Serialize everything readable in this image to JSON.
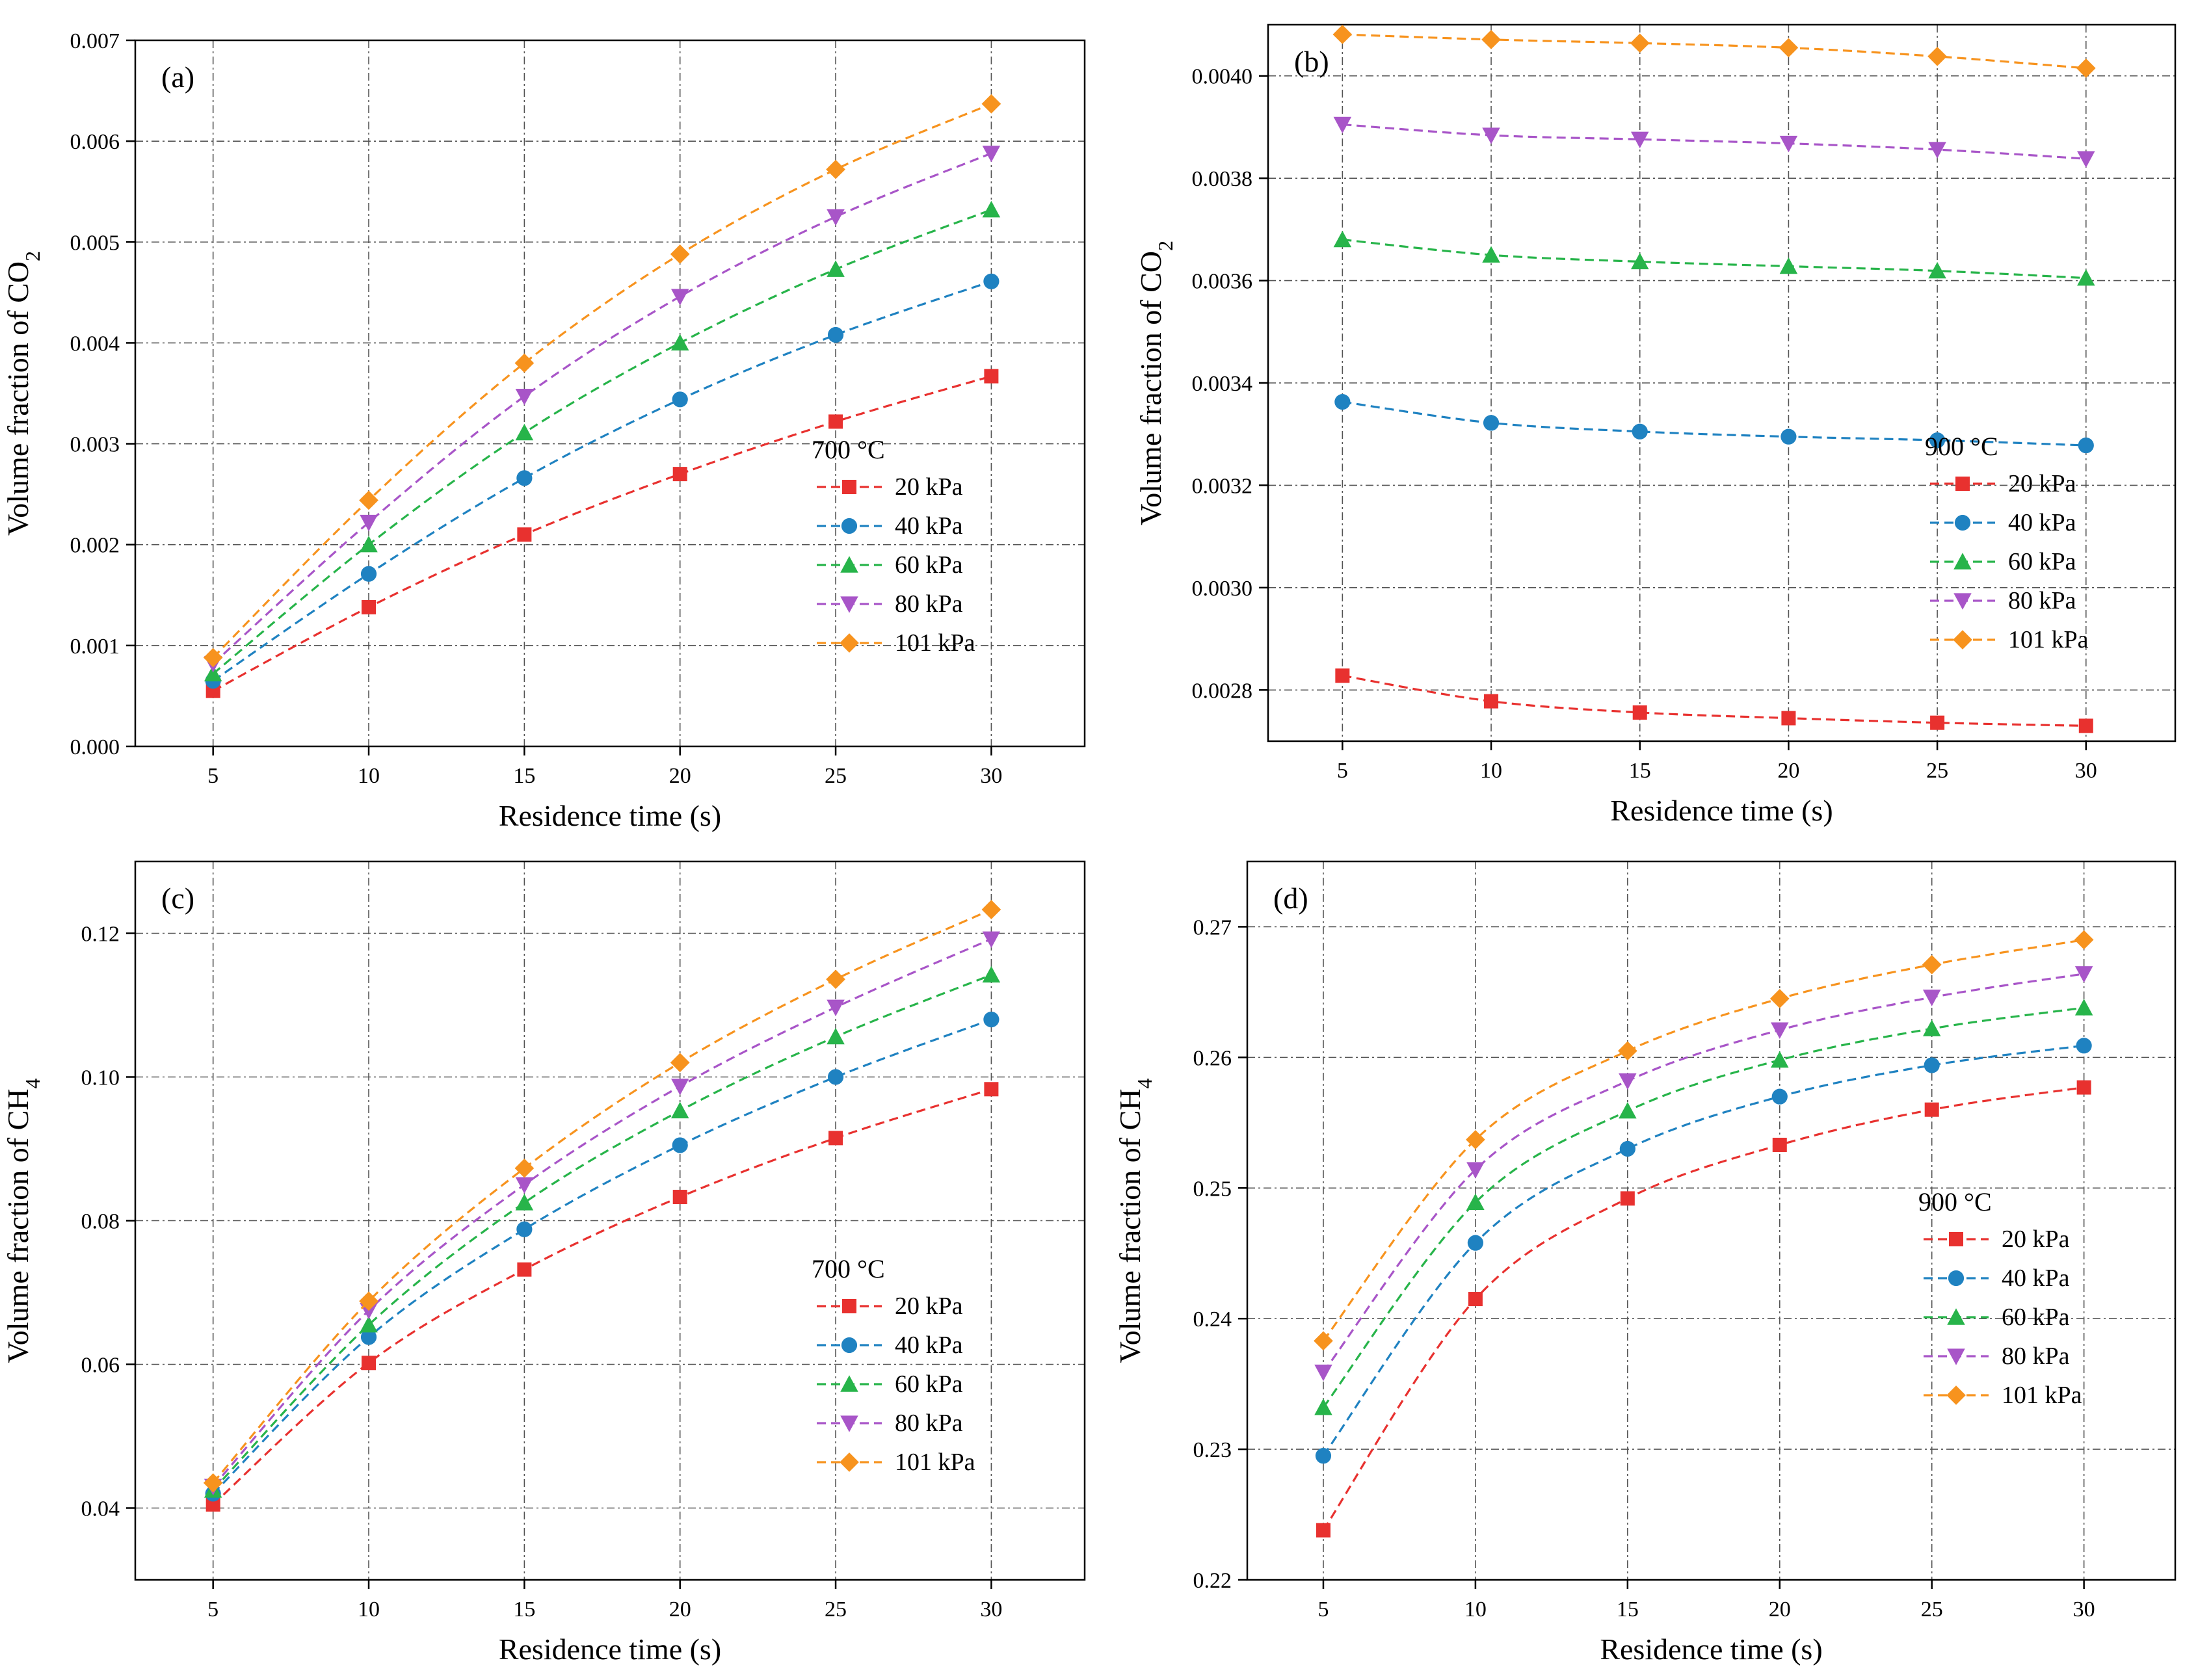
{
  "chart_data": [
    {
      "type": "line",
      "panel_label": "(a)",
      "xlabel": "Residence time (s)",
      "ylabel": {
        "main": "Volume fraction of CO",
        "sub": "2"
      },
      "xticks": [
        5,
        10,
        15,
        20,
        25,
        30
      ],
      "xlim": [
        2.5,
        33
      ],
      "ylim": [
        0,
        0.007
      ],
      "yticks": [
        "0.000",
        "0.001",
        "0.002",
        "0.003",
        "0.004",
        "0.005",
        "0.006",
        "0.007"
      ],
      "legend_title": "700 °C",
      "legend_position": "right-middle",
      "x": [
        5,
        10,
        15,
        20,
        25,
        30
      ],
      "series": [
        {
          "name": "20 kPa",
          "marker": "square",
          "color": "#e8312f",
          "values": [
            0.00055,
            0.00138,
            0.0021,
            0.0027,
            0.00322,
            0.00367
          ]
        },
        {
          "name": "40 kPa",
          "marker": "circle",
          "color": "#1f82c1",
          "values": [
            0.00065,
            0.00171,
            0.00266,
            0.00344,
            0.00408,
            0.00461
          ]
        },
        {
          "name": "60 kPa",
          "marker": "triangle-up",
          "color": "#27b44a",
          "values": [
            0.00072,
            0.002,
            0.00311,
            0.004,
            0.00473,
            0.00532
          ]
        },
        {
          "name": "80 kPa",
          "marker": "triangle-down",
          "color": "#a855c8",
          "values": [
            0.00082,
            0.00222,
            0.00347,
            0.00446,
            0.00525,
            0.00588
          ]
        },
        {
          "name": "101 kPa",
          "marker": "diamond",
          "color": "#f7931e",
          "values": [
            0.00088,
            0.00244,
            0.0038,
            0.00488,
            0.00572,
            0.00637
          ]
        }
      ]
    },
    {
      "type": "line",
      "panel_label": "(b)",
      "xlabel": "Residence time (s)",
      "ylabel": {
        "main": "Volume fraction of CO",
        "sub": "2"
      },
      "xticks": [
        5,
        10,
        15,
        20,
        25,
        30
      ],
      "xlim": [
        2.5,
        33
      ],
      "ylim": [
        0.0027,
        0.0041
      ],
      "yticks": [
        "0.0028",
        "0.0030",
        "0.0032",
        "0.0034",
        "0.0036",
        "0.0038",
        "0.0040"
      ],
      "legend_title": "900 °C",
      "legend_position": "right-middle",
      "x": [
        5,
        10,
        15,
        20,
        25,
        30
      ],
      "series": [
        {
          "name": "20 kPa",
          "marker": "square",
          "color": "#e8312f",
          "values": [
            0.002828,
            0.002778,
            0.002756,
            0.002745,
            0.002736,
            0.00273
          ]
        },
        {
          "name": "40 kPa",
          "marker": "circle",
          "color": "#1f82c1",
          "values": [
            0.003363,
            0.003322,
            0.003305,
            0.003295,
            0.003288,
            0.003278
          ]
        },
        {
          "name": "60 kPa",
          "marker": "triangle-up",
          "color": "#27b44a",
          "values": [
            0.00368,
            0.00365,
            0.003637,
            0.003628,
            0.003619,
            0.003605
          ]
        },
        {
          "name": "80 kPa",
          "marker": "triangle-down",
          "color": "#a855c8",
          "values": [
            0.003905,
            0.003884,
            0.003876,
            0.003868,
            0.003856,
            0.003838
          ]
        },
        {
          "name": "101 kPa",
          "marker": "diamond",
          "color": "#f7931e",
          "values": [
            0.004081,
            0.004071,
            0.004064,
            0.004055,
            0.004038,
            0.004015
          ]
        }
      ]
    },
    {
      "type": "line",
      "panel_label": "(c)",
      "xlabel": "Residence time (s)",
      "ylabel": {
        "main": "Volume fraction of CH",
        "sub": "4"
      },
      "xticks": [
        5,
        10,
        15,
        20,
        25,
        30
      ],
      "xlim": [
        2.5,
        33
      ],
      "ylim": [
        0.03,
        0.13
      ],
      "yticks": [
        "0.04",
        "0.06",
        "0.08",
        "0.10",
        "0.12"
      ],
      "legend_title": "700 °C",
      "legend_position": "right-bottom",
      "x": [
        5,
        10,
        15,
        20,
        25,
        30
      ],
      "series": [
        {
          "name": "20 kPa",
          "marker": "square",
          "color": "#e8312f",
          "values": [
            0.0405,
            0.0602,
            0.0732,
            0.0833,
            0.0915,
            0.0983
          ]
        },
        {
          "name": "40 kPa",
          "marker": "circle",
          "color": "#1f82c1",
          "values": [
            0.042,
            0.0638,
            0.0788,
            0.0905,
            0.1,
            0.108
          ]
        },
        {
          "name": "60 kPa",
          "marker": "triangle-up",
          "color": "#27b44a",
          "values": [
            0.0425,
            0.0655,
            0.0825,
            0.0953,
            0.1056,
            0.1142
          ]
        },
        {
          "name": "80 kPa",
          "marker": "triangle-down",
          "color": "#a855c8",
          "values": [
            0.043,
            0.0675,
            0.085,
            0.0987,
            0.1097,
            0.1192
          ]
        },
        {
          "name": "101 kPa",
          "marker": "diamond",
          "color": "#f7931e",
          "values": [
            0.0435,
            0.0688,
            0.0873,
            0.102,
            0.1136,
            0.1233
          ]
        }
      ]
    },
    {
      "type": "line",
      "panel_label": "(d)",
      "xlabel": "Residence time (s)",
      "ylabel": {
        "main": "Volume fraction of CH",
        "sub": "4"
      },
      "xticks": [
        5,
        10,
        15,
        20,
        25,
        30
      ],
      "xlim": [
        2.5,
        33
      ],
      "ylim": [
        0.22,
        0.275
      ],
      "yticks": [
        "0.22",
        "0.23",
        "0.24",
        "0.25",
        "0.26",
        "0.27"
      ],
      "legend_title": "900 °C",
      "legend_position": "right-middle",
      "x": [
        5,
        10,
        15,
        20,
        25,
        30
      ],
      "series": [
        {
          "name": "20 kPa",
          "marker": "square",
          "color": "#e8312f",
          "values": [
            0.2238,
            0.2415,
            0.2492,
            0.2533,
            0.256,
            0.2577
          ]
        },
        {
          "name": "40 kPa",
          "marker": "circle",
          "color": "#1f82c1",
          "values": [
            0.2295,
            0.2458,
            0.253,
            0.257,
            0.2594,
            0.2609
          ]
        },
        {
          "name": "60 kPa",
          "marker": "triangle-up",
          "color": "#27b44a",
          "values": [
            0.2332,
            0.2489,
            0.2559,
            0.2598,
            0.2622,
            0.2638
          ]
        },
        {
          "name": "80 kPa",
          "marker": "triangle-down",
          "color": "#a855c8",
          "values": [
            0.2359,
            0.2514,
            0.2582,
            0.2621,
            0.2646,
            0.2664
          ]
        },
        {
          "name": "101 kPa",
          "marker": "diamond",
          "color": "#f7931e",
          "values": [
            0.2383,
            0.2537,
            0.2605,
            0.2645,
            0.2671,
            0.269
          ]
        }
      ]
    }
  ]
}
